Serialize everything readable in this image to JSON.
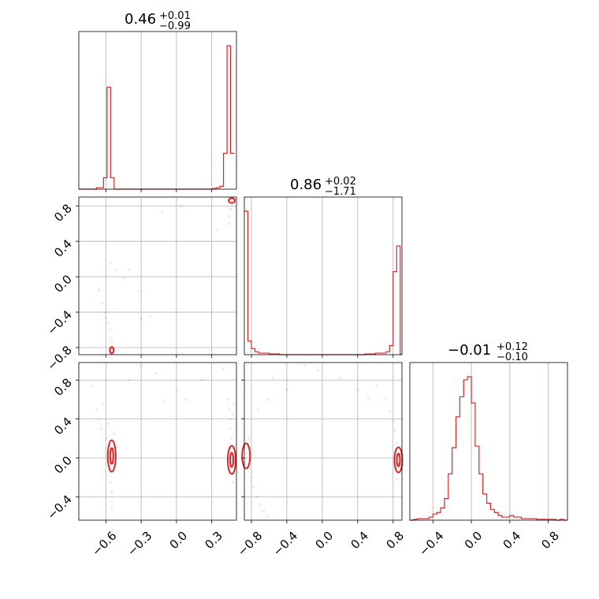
{
  "chart_data": {
    "type": "corner",
    "grid": true,
    "color": "#d62728",
    "titles": [
      {
        "median": "0.46",
        "plus": "+0.01",
        "minus": "−0.99"
      },
      {
        "median": "0.86",
        "plus": "+0.02",
        "minus": "−1.71"
      },
      {
        "median": "−0.01",
        "plus": "+0.12",
        "minus": "−0.10"
      }
    ],
    "axes": {
      "p1": {
        "range": [
          -0.83,
          0.51
        ],
        "ticks": [
          -0.6,
          -0.3,
          0.0,
          0.3
        ],
        "labels": [
          "−0.6",
          "−0.3",
          "0.0",
          "0.3"
        ]
      },
      "p2": {
        "range": [
          -0.88,
          0.9
        ],
        "ticks": [
          -0.8,
          -0.4,
          0.0,
          0.4,
          0.8
        ],
        "labels": [
          "−0.8",
          "−0.4",
          "0.0",
          "0.4",
          "0.8"
        ]
      },
      "p3": {
        "range": [
          -0.64,
          0.98
        ],
        "ticks_y": [
          -0.4,
          0.0,
          0.4,
          0.8
        ],
        "labels_y": [
          "−0.4",
          "0.0",
          "0.4",
          "0.8"
        ],
        "range_x": [
          -0.64,
          1.0
        ],
        "ticks_x": [
          -0.4,
          0.0,
          0.4,
          0.8
        ],
        "labels_x": [
          "−0.4",
          "0.0",
          "0.4",
          "0.8"
        ]
      }
    },
    "hist_p1": {
      "bins": [
        -0.83,
        -0.8,
        -0.77,
        -0.74,
        -0.71,
        -0.68,
        -0.65,
        -0.62,
        -0.59,
        -0.56,
        -0.53,
        -0.5,
        -0.47,
        -0.44,
        -0.41,
        -0.38,
        -0.35,
        -0.32,
        -0.29,
        -0.26,
        -0.23,
        -0.2,
        -0.17,
        -0.14,
        -0.11,
        -0.08,
        -0.05,
        -0.02,
        0.01,
        0.04,
        0.07,
        0.1,
        0.13,
        0.16,
        0.19,
        0.22,
        0.25,
        0.28,
        0.31,
        0.34,
        0.37,
        0.4,
        0.43,
        0.46,
        0.49
      ],
      "counts": [
        0,
        0,
        0,
        0,
        0,
        0.01,
        0.01,
        0.08,
        0.71,
        0.08,
        0,
        0,
        0,
        0,
        0,
        0,
        0,
        0,
        0,
        0,
        0,
        0,
        0,
        0,
        0,
        0,
        0,
        0,
        0,
        0,
        0,
        0,
        0,
        0,
        0,
        0,
        0,
        0,
        0.005,
        0.01,
        0.02,
        0.25,
        1.0,
        0.25
      ]
    },
    "hist_p2": {
      "bins": [
        -0.88,
        -0.84,
        -0.8,
        -0.76,
        -0.72,
        -0.68,
        -0.64,
        -0.6,
        -0.56,
        -0.52,
        -0.48,
        -0.44,
        -0.4,
        -0.36,
        -0.32,
        -0.28,
        -0.24,
        -0.2,
        -0.16,
        -0.12,
        -0.08,
        -0.04,
        0.0,
        0.04,
        0.08,
        0.12,
        0.16,
        0.2,
        0.24,
        0.28,
        0.32,
        0.36,
        0.4,
        0.44,
        0.48,
        0.52,
        0.56,
        0.6,
        0.64,
        0.68,
        0.72,
        0.76,
        0.8,
        0.84,
        0.88,
        0.92
      ],
      "counts": [
        0.95,
        0.09,
        0.04,
        0.02,
        0.01,
        0.01,
        0.01,
        0.005,
        0.005,
        0.005,
        0,
        0,
        0,
        0,
        0,
        0,
        0,
        0,
        0,
        0,
        0,
        0,
        0,
        0,
        0,
        0,
        0,
        0,
        0,
        0,
        0,
        0,
        0,
        0,
        0.005,
        0.005,
        0.005,
        0.01,
        0.01,
        0.01,
        0.02,
        0.06,
        0.55,
        0.72,
        0
      ]
    },
    "hist_p3": {
      "bins": [
        -0.64,
        -0.6,
        -0.56,
        -0.52,
        -0.48,
        -0.44,
        -0.4,
        -0.36,
        -0.32,
        -0.28,
        -0.24,
        -0.2,
        -0.16,
        -0.12,
        -0.08,
        -0.04,
        0.0,
        0.04,
        0.08,
        0.12,
        0.16,
        0.2,
        0.24,
        0.28,
        0.32,
        0.36,
        0.4,
        0.44,
        0.48,
        0.52,
        0.56,
        0.6,
        0.64,
        0.68,
        0.72,
        0.76,
        0.8,
        0.84,
        0.88,
        0.92,
        0.96,
        1.0
      ],
      "counts": [
        0,
        0.005,
        0.01,
        0.01,
        0.01,
        0.02,
        0.04,
        0.05,
        0.08,
        0.14,
        0.3,
        0.47,
        0.67,
        0.8,
        0.91,
        0.93,
        0.76,
        0.48,
        0.3,
        0.17,
        0.11,
        0.07,
        0.05,
        0.03,
        0.02,
        0.02,
        0.03,
        0.02,
        0.02,
        0.01,
        0.01,
        0.01,
        0.01,
        0.005,
        0.005,
        0.005,
        0.005,
        0.005,
        0,
        0.005,
        0
      ]
    },
    "samples_p1_p2": [
      [
        -0.55,
        -0.8
      ],
      [
        -0.56,
        -0.85
      ],
      [
        -0.55,
        -0.83
      ],
      [
        -0.54,
        -0.82
      ],
      [
        -0.56,
        -0.82
      ],
      [
        -0.55,
        -0.78
      ],
      [
        -0.55,
        -0.74
      ],
      [
        -0.56,
        -0.7
      ],
      [
        -0.57,
        -0.6
      ],
      [
        -0.58,
        -0.52
      ],
      [
        -0.6,
        -0.46
      ],
      [
        -0.61,
        -0.4
      ],
      [
        -0.63,
        -0.3
      ],
      [
        -0.66,
        -0.15
      ],
      [
        -0.56,
        0.15
      ],
      [
        -0.52,
        0.08
      ],
      [
        -0.45,
        -0.02
      ],
      [
        -0.4,
        0.08
      ],
      [
        -0.32,
        -0.16
      ],
      [
        -0.22,
        -0.45
      ],
      [
        -0.3,
        -0.48
      ],
      [
        -0.12,
        0.74
      ],
      [
        0.04,
        0.8
      ],
      [
        0.35,
        0.53
      ],
      [
        0.44,
        0.6
      ],
      [
        0.45,
        0.68
      ],
      [
        0.46,
        0.76
      ],
      [
        0.47,
        0.82
      ],
      [
        0.47,
        0.86
      ],
      [
        0.48,
        0.84
      ],
      [
        0.49,
        0.85
      ],
      [
        0.48,
        0.88
      ],
      [
        0.47,
        0.9
      ]
    ],
    "samples_p1_p3": [
      [
        -0.72,
        0.74
      ],
      [
        -0.68,
        0.5
      ],
      [
        -0.66,
        0.4
      ],
      [
        -0.64,
        0.3
      ],
      [
        -0.62,
        0.55
      ],
      [
        -0.6,
        0.2
      ],
      [
        -0.58,
        0.35
      ],
      [
        -0.57,
        -0.05
      ],
      [
        -0.56,
        -0.15
      ],
      [
        -0.56,
        -0.25
      ],
      [
        -0.55,
        -0.35
      ],
      [
        -0.55,
        -0.45
      ],
      [
        -0.55,
        -0.52
      ],
      [
        -0.54,
        0.1
      ],
      [
        -0.53,
        0.25
      ],
      [
        -0.55,
        0.05
      ],
      [
        -0.4,
        0.8
      ],
      [
        -0.3,
        0.95
      ],
      [
        -0.18,
        0.87
      ],
      [
        -0.1,
        0.58
      ],
      [
        0.0,
        0.68
      ],
      [
        0.08,
        0.6
      ],
      [
        0.22,
        0.8
      ],
      [
        0.4,
        0.92
      ],
      [
        0.44,
        0.6
      ],
      [
        0.45,
        0.5
      ],
      [
        0.46,
        0.4
      ],
      [
        0.46,
        0.3
      ],
      [
        0.47,
        0.2
      ],
      [
        0.47,
        0.1
      ],
      [
        0.48,
        -0.05
      ],
      [
        0.47,
        -0.15
      ],
      [
        0.48,
        -0.25
      ],
      [
        0.49,
        0.55
      ],
      [
        0.48,
        0.45
      ]
    ],
    "samples_p2_p3": [
      [
        -0.84,
        0.1
      ],
      [
        -0.82,
        -0.1
      ],
      [
        -0.8,
        -0.2
      ],
      [
        -0.78,
        -0.3
      ],
      [
        -0.74,
        -0.4
      ],
      [
        -0.7,
        -0.48
      ],
      [
        -0.66,
        -0.55
      ],
      [
        -0.62,
        -0.6
      ],
      [
        -0.85,
        0.05
      ],
      [
        -0.83,
        0.2
      ],
      [
        -0.72,
        0.5
      ],
      [
        -0.62,
        0.6
      ],
      [
        -0.56,
        0.82
      ],
      [
        -0.4,
        0.7
      ],
      [
        -0.2,
        0.95
      ],
      [
        -0.05,
        0.9
      ],
      [
        0.2,
        0.82
      ],
      [
        0.4,
        0.7
      ],
      [
        0.52,
        0.6
      ],
      [
        0.62,
        0.74
      ],
      [
        0.7,
        0.6
      ],
      [
        0.76,
        0.48
      ],
      [
        0.8,
        0.38
      ],
      [
        0.82,
        0.28
      ],
      [
        0.84,
        0.15
      ],
      [
        0.85,
        -0.05
      ],
      [
        0.85,
        -0.15
      ],
      [
        0.84,
        -0.22
      ],
      [
        0.88,
        0.05
      ],
      [
        0.87,
        -0.1
      ]
    ]
  }
}
